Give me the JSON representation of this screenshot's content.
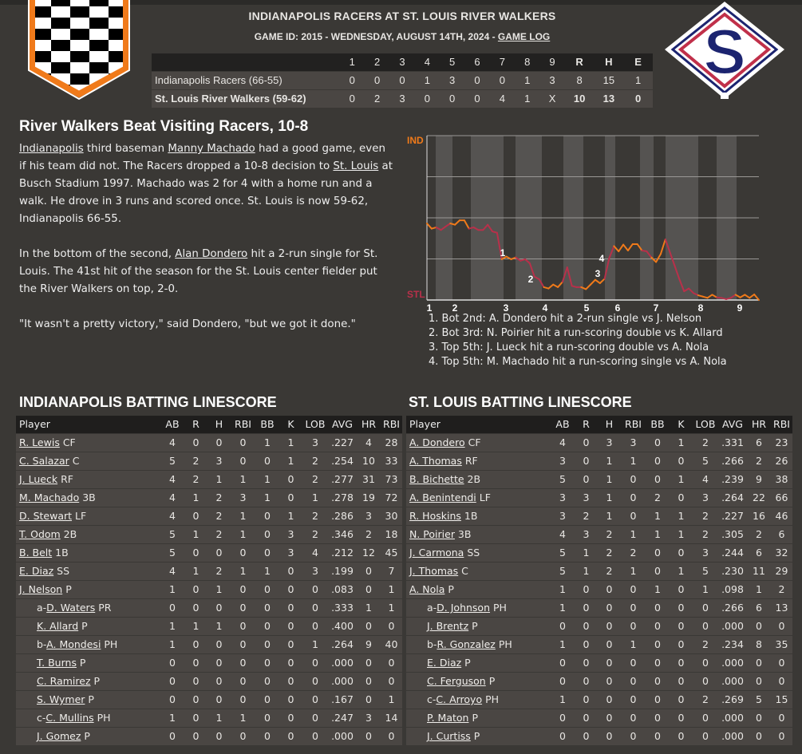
{
  "header": {
    "title": "INDIANAPOLIS RACERS AT ST. LOUIS RIVER WALKERS",
    "subtitle": "GAME ID: 2015 - WEDNESDAY, AUGUST 14TH, 2024 - ",
    "game_log_link": "GAME LOG"
  },
  "colors": {
    "background": "#3a3835",
    "away": "#f07a1a",
    "home": "#b8304a",
    "away_logo_border": "#f07a1a",
    "home_logo_navy": "#1c2470"
  },
  "linescore": {
    "columns": [
      "1",
      "2",
      "3",
      "4",
      "5",
      "6",
      "7",
      "8",
      "9",
      "R",
      "H",
      "E"
    ],
    "teams": [
      {
        "name": "Indianapolis Racers (66-55)",
        "cells": [
          "0",
          "0",
          "0",
          "1",
          "3",
          "0",
          "0",
          "1",
          "3",
          "8",
          "15",
          "1"
        ]
      },
      {
        "name": "St. Louis River Walkers (59-62)",
        "cells": [
          "0",
          "2",
          "3",
          "0",
          "0",
          "0",
          "4",
          "1",
          "X",
          "10",
          "13",
          "0"
        ]
      }
    ]
  },
  "story": {
    "headline": "River Walkers Beat Visiting Racers, 10-8",
    "p1": {
      "link1": "Indianapolis",
      "t1": " third baseman ",
      "link2": "Manny Machado",
      "t2": " had a good game, even if his team did not. The Racers dropped a 10-8 decision to ",
      "link3": "St. Louis",
      "t3": " at Busch Stadium 1997. Machado was 2 for 4 with a home run and a walk. He drove in 3 runs and scored once. St. Louis is now 59-62, Indianapolis 66-55."
    },
    "p2": {
      "t1": "In the bottom of the second, ",
      "link1": "Alan Dondero",
      "t2": " hit a 2-run single for St. Louis. The 41st hit of the season for the St. Louis center fielder put the River Walkers on top, 2-0."
    },
    "p3": "\"It wasn't a pretty victory,\" said Dondero, \"but we got it done.\""
  },
  "chart_data": {
    "type": "line",
    "top_label": "IND",
    "bottom_label": "STL",
    "x_tick_labels": [
      "1",
      "2",
      "3",
      "4",
      "5",
      "6",
      "7",
      "8",
      "9"
    ],
    "ylim": [
      0,
      1
    ],
    "grid": true,
    "series": [
      {
        "values": [
          0.466,
          0.434,
          0.442,
          0.426,
          0.447,
          0.466,
          0.458,
          0.485,
          0.485,
          0.434,
          0.442,
          0.426,
          0.426,
          0.458,
          0.417,
          0.409,
          0.248,
          0.264,
          0.248,
          0.259,
          0.239,
          0.248,
          0.223,
          0.142,
          0.126,
          0.078,
          0.07,
          0.094,
          0.078,
          0.11,
          0.199,
          0.086,
          0.078,
          0.078,
          0.066,
          0.094,
          0.123,
          0.102,
          0.129,
          0.256,
          0.328,
          0.296,
          0.337,
          0.301,
          0.34,
          0.34,
          0.301,
          0.296,
          0.259,
          0.231,
          0.28,
          0.369,
          0.288,
          0.207,
          0.126,
          0.053,
          0.07,
          0.042,
          0.029,
          0.021,
          0.013,
          0.032,
          0.016,
          0.013,
          0.005,
          0.013,
          0.032,
          0.016,
          0.032,
          0.013,
          0.034,
          0.0
        ]
      }
    ],
    "annotations": [
      "1",
      "2",
      "3",
      "4"
    ],
    "notes": [
      "1. Bot 2nd: A. Dondero hit a 2-run single vs J. Nelson",
      "2. Bot 3rd: N. Poirier hit a run-scoring double vs K. Allard",
      "3. Top 5th: J. Lueck hit a run-scoring double vs A. Nola",
      "4. Top 5th: M. Machado hit a run-scoring single vs A. Nola"
    ]
  },
  "batting": [
    {
      "title": "INDIANAPOLIS BATTING LINESCORE",
      "columns": [
        "Player",
        "AB",
        "R",
        "H",
        "RBI",
        "BB",
        "K",
        "LOB",
        "AVG",
        "HR",
        "RBI"
      ],
      "rows": [
        {
          "prefix": "",
          "name": "R. Lewis",
          "pos": " CF",
          "sub": false,
          "stats": [
            "4",
            "0",
            "0",
            "0",
            "1",
            "1",
            "3",
            ".227",
            "4",
            "28"
          ]
        },
        {
          "prefix": "",
          "name": "C. Salazar",
          "pos": " C",
          "sub": false,
          "stats": [
            "5",
            "2",
            "3",
            "0",
            "0",
            "1",
            "2",
            ".254",
            "10",
            "33"
          ]
        },
        {
          "prefix": "",
          "name": "J. Lueck",
          "pos": " RF",
          "sub": false,
          "stats": [
            "4",
            "2",
            "1",
            "1",
            "1",
            "0",
            "2",
            ".277",
            "31",
            "73"
          ]
        },
        {
          "prefix": "",
          "name": "M. Machado",
          "pos": " 3B",
          "sub": false,
          "stats": [
            "4",
            "1",
            "2",
            "3",
            "1",
            "0",
            "1",
            ".278",
            "19",
            "72"
          ]
        },
        {
          "prefix": "",
          "name": "D. Stewart",
          "pos": " LF",
          "sub": false,
          "stats": [
            "4",
            "0",
            "2",
            "1",
            "0",
            "1",
            "2",
            ".286",
            "3",
            "30"
          ]
        },
        {
          "prefix": "",
          "name": "T. Odom",
          "pos": " 2B",
          "sub": false,
          "stats": [
            "5",
            "1",
            "2",
            "1",
            "0",
            "3",
            "2",
            ".346",
            "2",
            "18"
          ]
        },
        {
          "prefix": "",
          "name": "B. Belt",
          "pos": " 1B",
          "sub": false,
          "stats": [
            "5",
            "0",
            "0",
            "0",
            "0",
            "3",
            "4",
            ".212",
            "12",
            "45"
          ]
        },
        {
          "prefix": "",
          "name": "E. Diaz",
          "pos": " SS",
          "sub": false,
          "stats": [
            "4",
            "1",
            "2",
            "1",
            "1",
            "0",
            "3",
            ".199",
            "0",
            "7"
          ]
        },
        {
          "prefix": "",
          "name": "J. Nelson",
          "pos": " P",
          "sub": false,
          "stats": [
            "1",
            "0",
            "1",
            "0",
            "0",
            "0",
            "0",
            ".083",
            "0",
            "1"
          ]
        },
        {
          "prefix": "a-",
          "name": "D. Waters",
          "pos": " PR",
          "sub": true,
          "stats": [
            "0",
            "0",
            "0",
            "0",
            "0",
            "0",
            "0",
            ".333",
            "1",
            "1"
          ]
        },
        {
          "prefix": "",
          "name": "K. Allard",
          "pos": " P",
          "sub": true,
          "stats": [
            "1",
            "1",
            "1",
            "0",
            "0",
            "0",
            "0",
            ".400",
            "0",
            "0"
          ]
        },
        {
          "prefix": "b-",
          "name": "A. Mondesi",
          "pos": " PH",
          "sub": true,
          "stats": [
            "1",
            "0",
            "0",
            "0",
            "0",
            "0",
            "1",
            ".264",
            "9",
            "40"
          ]
        },
        {
          "prefix": "",
          "name": "T. Burns",
          "pos": " P",
          "sub": true,
          "stats": [
            "0",
            "0",
            "0",
            "0",
            "0",
            "0",
            "0",
            ".000",
            "0",
            "0"
          ]
        },
        {
          "prefix": "",
          "name": "C. Ramirez",
          "pos": " P",
          "sub": true,
          "stats": [
            "0",
            "0",
            "0",
            "0",
            "0",
            "0",
            "0",
            ".000",
            "0",
            "0"
          ]
        },
        {
          "prefix": "",
          "name": "S. Wymer",
          "pos": " P",
          "sub": true,
          "stats": [
            "0",
            "0",
            "0",
            "0",
            "0",
            "0",
            "0",
            ".167",
            "0",
            "1"
          ]
        },
        {
          "prefix": "c-",
          "name": "C. Mullins",
          "pos": " PH",
          "sub": true,
          "stats": [
            "1",
            "0",
            "1",
            "1",
            "0",
            "0",
            "0",
            ".247",
            "3",
            "14"
          ]
        },
        {
          "prefix": "",
          "name": "J. Gomez",
          "pos": " P",
          "sub": true,
          "stats": [
            "0",
            "0",
            "0",
            "0",
            "0",
            "0",
            "0",
            ".000",
            "0",
            "0"
          ]
        }
      ]
    },
    {
      "title": "ST. LOUIS BATTING LINESCORE",
      "columns": [
        "Player",
        "AB",
        "R",
        "H",
        "RBI",
        "BB",
        "K",
        "LOB",
        "AVG",
        "HR",
        "RBI"
      ],
      "rows": [
        {
          "prefix": "",
          "name": "A. Dondero",
          "pos": " CF",
          "sub": false,
          "stats": [
            "4",
            "0",
            "3",
            "3",
            "0",
            "1",
            "2",
            ".331",
            "6",
            "23"
          ]
        },
        {
          "prefix": "",
          "name": "A. Thomas",
          "pos": " RF",
          "sub": false,
          "stats": [
            "3",
            "0",
            "1",
            "1",
            "0",
            "0",
            "5",
            ".266",
            "2",
            "26"
          ]
        },
        {
          "prefix": "",
          "name": "B. Bichette",
          "pos": " 2B",
          "sub": false,
          "stats": [
            "5",
            "0",
            "1",
            "0",
            "0",
            "1",
            "4",
            ".239",
            "9",
            "38"
          ]
        },
        {
          "prefix": "",
          "name": "A. Benintendi",
          "pos": " LF",
          "sub": false,
          "stats": [
            "3",
            "3",
            "1",
            "0",
            "2",
            "0",
            "3",
            ".264",
            "22",
            "66"
          ]
        },
        {
          "prefix": "",
          "name": "R. Hoskins",
          "pos": " 1B",
          "sub": false,
          "stats": [
            "3",
            "2",
            "1",
            "0",
            "1",
            "1",
            "2",
            ".227",
            "16",
            "46"
          ]
        },
        {
          "prefix": "",
          "name": "N. Poirier",
          "pos": " 3B",
          "sub": false,
          "stats": [
            "4",
            "3",
            "2",
            "1",
            "1",
            "1",
            "2",
            ".305",
            "2",
            "6"
          ]
        },
        {
          "prefix": "",
          "name": "J. Carmona",
          "pos": " SS",
          "sub": false,
          "stats": [
            "5",
            "1",
            "2",
            "2",
            "0",
            "0",
            "3",
            ".244",
            "6",
            "32"
          ]
        },
        {
          "prefix": "",
          "name": "J. Thomas",
          "pos": " C",
          "sub": false,
          "stats": [
            "5",
            "1",
            "2",
            "1",
            "0",
            "1",
            "5",
            ".230",
            "11",
            "29"
          ]
        },
        {
          "prefix": "",
          "name": "A. Nola",
          "pos": " P",
          "sub": false,
          "stats": [
            "1",
            "0",
            "0",
            "0",
            "1",
            "0",
            "1",
            ".098",
            "1",
            "2"
          ]
        },
        {
          "prefix": "a-",
          "name": "D. Johnson",
          "pos": " PH",
          "sub": true,
          "stats": [
            "1",
            "0",
            "0",
            "0",
            "0",
            "0",
            "0",
            ".266",
            "6",
            "13"
          ]
        },
        {
          "prefix": "",
          "name": "J. Brentz",
          "pos": " P",
          "sub": true,
          "stats": [
            "0",
            "0",
            "0",
            "0",
            "0",
            "0",
            "0",
            ".000",
            "0",
            "0"
          ]
        },
        {
          "prefix": "b-",
          "name": "R. Gonzalez",
          "pos": " PH",
          "sub": true,
          "stats": [
            "1",
            "0",
            "0",
            "1",
            "0",
            "0",
            "2",
            ".234",
            "8",
            "35"
          ]
        },
        {
          "prefix": "",
          "name": "E. Diaz",
          "pos": " P",
          "sub": true,
          "stats": [
            "0",
            "0",
            "0",
            "0",
            "0",
            "0",
            "0",
            ".000",
            "0",
            "0"
          ]
        },
        {
          "prefix": "",
          "name": "C. Ferguson",
          "pos": " P",
          "sub": true,
          "stats": [
            "0",
            "0",
            "0",
            "0",
            "0",
            "0",
            "0",
            ".000",
            "0",
            "0"
          ]
        },
        {
          "prefix": "c-",
          "name": "C. Arroyo",
          "pos": " PH",
          "sub": true,
          "stats": [
            "1",
            "0",
            "0",
            "0",
            "0",
            "0",
            "2",
            ".269",
            "5",
            "15"
          ]
        },
        {
          "prefix": "",
          "name": "P. Maton",
          "pos": " P",
          "sub": true,
          "stats": [
            "0",
            "0",
            "0",
            "0",
            "0",
            "0",
            "0",
            ".000",
            "0",
            "0"
          ]
        },
        {
          "prefix": "",
          "name": "J. Curtiss",
          "pos": " P",
          "sub": true,
          "stats": [
            "0",
            "0",
            "0",
            "0",
            "0",
            "0",
            "0",
            ".000",
            "0",
            "0"
          ]
        }
      ]
    }
  ]
}
